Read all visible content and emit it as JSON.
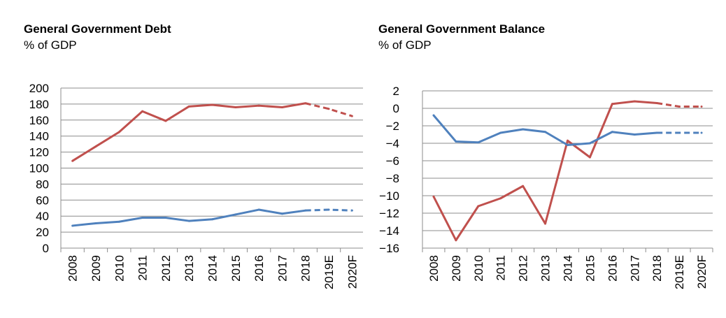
{
  "chart_data": [
    {
      "type": "line",
      "title": "General Government Debt",
      "subtitle": "% of GDP",
      "categories": [
        "2008",
        "2009",
        "2010",
        "2011",
        "2012",
        "2013",
        "2014",
        "2015",
        "2016",
        "2017",
        "2018",
        "2019E",
        "2020F"
      ],
      "ylim": [
        0,
        200
      ],
      "yticks": [
        0,
        20,
        40,
        60,
        80,
        100,
        120,
        140,
        160,
        180,
        200
      ],
      "grid": true,
      "forecast_from_index": 10,
      "series": [
        {
          "color": "#c0504d",
          "values": [
            109,
            127,
            145,
            171,
            159,
            177,
            179,
            176,
            178,
            176,
            181,
            174,
            165
          ]
        },
        {
          "color": "#4f81bd",
          "values": [
            28,
            31,
            33,
            38,
            38,
            34,
            36,
            42,
            48,
            43,
            47,
            48,
            47
          ]
        }
      ]
    },
    {
      "type": "line",
      "title": "General Government Balance",
      "subtitle": "% of GDP",
      "categories": [
        "2008",
        "2009",
        "2010",
        "2011",
        "2012",
        "2013",
        "2014",
        "2015",
        "2016",
        "2017",
        "2018",
        "2019E",
        "2020F"
      ],
      "ylim": [
        -16,
        2
      ],
      "yticks": [
        -16,
        -14,
        -12,
        -10,
        -8,
        -6,
        -4,
        -2,
        0,
        2
      ],
      "grid": true,
      "forecast_from_index": 10,
      "series": [
        {
          "color": "#c0504d",
          "values": [
            -10.1,
            -15.1,
            -11.2,
            -10.3,
            -8.9,
            -13.2,
            -3.7,
            -5.6,
            0.5,
            0.8,
            0.6,
            0.2,
            0.2
          ]
        },
        {
          "color": "#4f81bd",
          "values": [
            -0.8,
            -3.8,
            -3.9,
            -2.8,
            -2.4,
            -2.7,
            -4.2,
            -4.0,
            -2.7,
            -3.0,
            -2.8,
            -2.8,
            -2.8
          ]
        }
      ]
    }
  ]
}
